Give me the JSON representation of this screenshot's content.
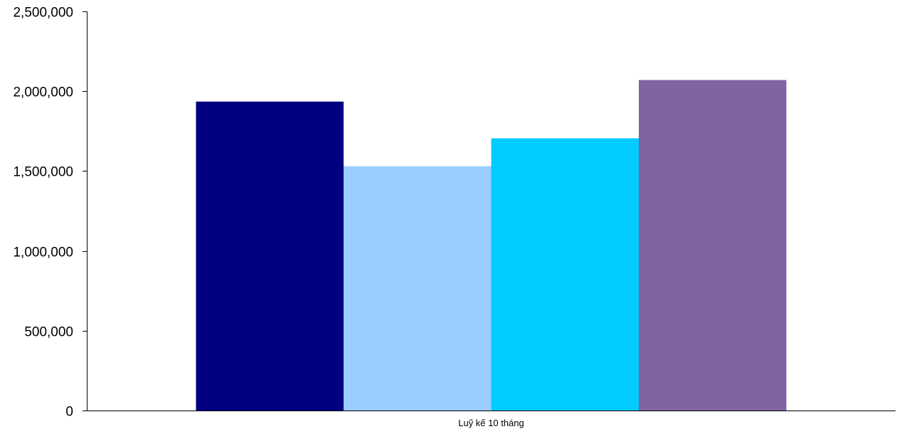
{
  "chart_data": {
    "type": "bar",
    "title": "",
    "xlabel": "",
    "ylabel": "",
    "categories": [
      "Luỹ kế 10 tháng"
    ],
    "series": [
      {
        "values": [
          1935000
        ],
        "color": "#000080"
      },
      {
        "values": [
          1530000
        ],
        "color": "#99CCFF"
      },
      {
        "values": [
          1705000
        ],
        "color": "#00CCFF"
      },
      {
        "values": [
          2070000
        ],
        "color": "#8064A2"
      }
    ],
    "ylim": [
      0,
      2500000
    ],
    "yticks": [
      0,
      500000,
      1000000,
      1500000,
      2000000,
      2500000
    ],
    "ytick_labels": [
      "0",
      "500,000",
      "1,000,000",
      "1,500,000",
      "2,000,000",
      "2,500,000"
    ],
    "grid": false,
    "legend": "none"
  }
}
